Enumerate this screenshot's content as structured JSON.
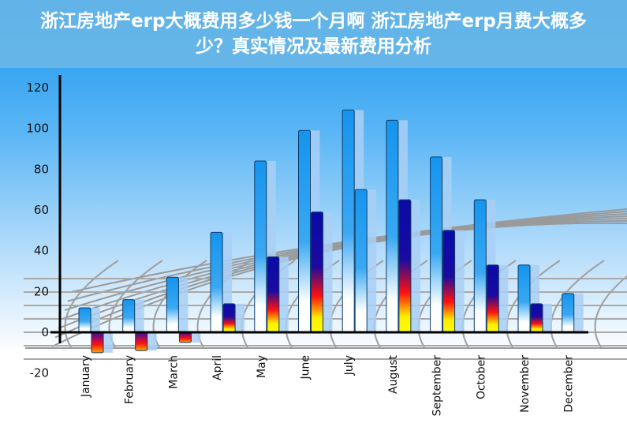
{
  "title": "浙江房地产erp大概费用多少钱一个月啊 浙江房地产erp月费大概多少？真实情况及最新费用分析",
  "chart_data": {
    "type": "bar",
    "title": "",
    "xlabel": "",
    "ylabel": "",
    "ylim": [
      -20,
      120
    ],
    "yticks": [
      -20,
      0,
      20,
      40,
      60,
      80,
      100,
      120
    ],
    "grid": false,
    "categories": [
      "January",
      "February",
      "March",
      "April",
      "May",
      "June",
      "July",
      "August",
      "September",
      "October",
      "November",
      "December"
    ],
    "series": [
      {
        "values": [
          12,
          16,
          27,
          49,
          84,
          99,
          109,
          104,
          86,
          65,
          33,
          19
        ],
        "color": "#1a9cf0"
      },
      {
        "values": [
          -10,
          -9,
          -5,
          14,
          37,
          59,
          70,
          65,
          50,
          33,
          14,
          0
        ],
        "color": "#0a0aa8"
      }
    ]
  }
}
